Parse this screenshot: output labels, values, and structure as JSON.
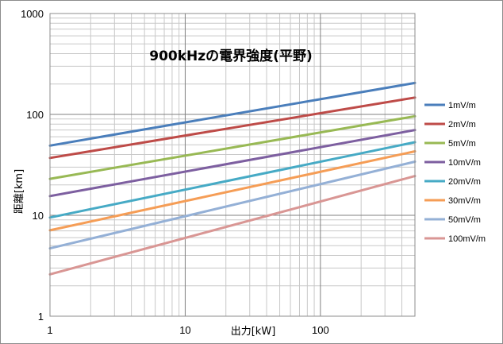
{
  "chart_data": {
    "type": "line",
    "title": "900kHzの電界強度(平野)",
    "xlabel": "出力[kW]",
    "ylabel": "距離[km]",
    "xscale": "log",
    "yscale": "log",
    "xlim": [
      1,
      500
    ],
    "ylim": [
      1,
      1000
    ],
    "x_ticks": [
      1,
      10,
      100
    ],
    "x_tick_labels": [
      "1",
      "10",
      "100"
    ],
    "y_ticks": [
      1,
      10,
      100,
      1000
    ],
    "y_tick_labels": [
      "1",
      "10",
      "100",
      "1000"
    ],
    "grid": true,
    "legend_position": "right",
    "x": [
      1,
      500
    ],
    "series": [
      {
        "name": "1mV/m",
        "values": [
          49,
          205
        ],
        "color": "#4a7ebb"
      },
      {
        "name": "2mV/m",
        "values": [
          37,
          147
        ],
        "color": "#be4b48"
      },
      {
        "name": "5mV/m",
        "values": [
          23,
          96
        ],
        "color": "#98b954"
      },
      {
        "name": "10mV/m",
        "values": [
          15.5,
          70
        ],
        "color": "#7d5fa0"
      },
      {
        "name": "20mV/m",
        "values": [
          9.5,
          53
        ],
        "color": "#46aac5"
      },
      {
        "name": "30mV/m",
        "values": [
          7.1,
          43
        ],
        "color": "#f59d56"
      },
      {
        "name": "50mV/m",
        "values": [
          4.7,
          34
        ],
        "color": "#94b0d6"
      },
      {
        "name": "100mV/m",
        "values": [
          2.6,
          24.5
        ],
        "color": "#d99694"
      }
    ]
  }
}
